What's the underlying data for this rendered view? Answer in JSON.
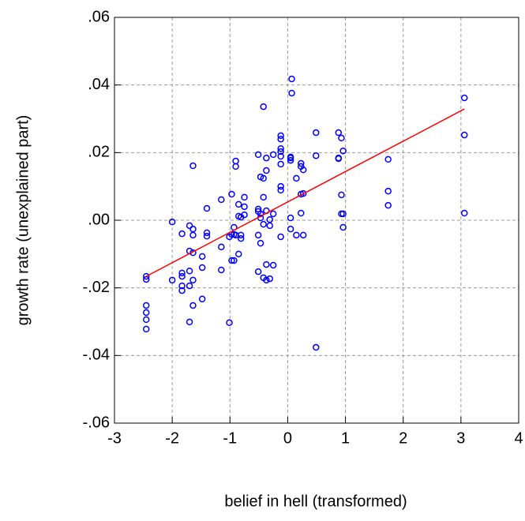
{
  "chart_data": {
    "type": "scatter",
    "xlabel": "belief in hell (transformed)",
    "ylabel": "growth rate (unexplained part)",
    "xlim": [
      -3,
      4
    ],
    "xticks": [
      -3,
      -2,
      -1,
      0,
      1,
      2,
      3,
      4
    ],
    "ylim": [
      -0.06,
      0.06
    ],
    "yticks": [
      {
        "value": -0.06,
        "label": "-.06"
      },
      {
        "value": -0.04,
        "label": "-.04"
      },
      {
        "value": -0.02,
        "label": "-.02"
      },
      {
        "value": 0,
        "label": ".00"
      },
      {
        "value": 0.02,
        "label": ".02"
      },
      {
        "value": 0.04,
        "label": ".04"
      },
      {
        "value": 0.06,
        "label": ".06"
      }
    ],
    "grid": true,
    "series": [
      {
        "color": "#0000ff",
        "x": [
          -2.45,
          -2.45,
          -2.45,
          -2.45,
          -2.45,
          -2.45,
          -2.0,
          -2.0,
          -1.83,
          -1.83,
          -1.83,
          -1.83,
          -1.83,
          -1.7,
          -1.7,
          -1.7,
          -1.7,
          -1.7,
          -1.64,
          -1.64,
          -1.64,
          -1.64,
          -1.64,
          -1.64,
          -1.48,
          -1.48,
          -1.48,
          -1.4,
          -1.4,
          -1.4,
          -1.15,
          -1.15,
          -1.15,
          -1.01,
          -1.01,
          -0.97,
          -0.97,
          -0.97,
          -0.93,
          -0.93,
          -0.93,
          -0.9,
          -0.9,
          -0.9,
          -0.85,
          -0.85,
          -0.85,
          -0.81,
          -0.81,
          -0.81,
          -0.75,
          -0.75,
          -0.75,
          -0.51,
          -0.51,
          -0.51,
          -0.51,
          -0.51,
          -0.47,
          -0.47,
          -0.47,
          -0.47,
          -0.42,
          -0.42,
          -0.42,
          -0.42,
          -0.42,
          -0.37,
          -0.37,
          -0.37,
          -0.37,
          -0.37,
          -0.31,
          -0.31,
          -0.31,
          -0.25,
          -0.25,
          -0.25,
          -0.12,
          -0.12,
          -0.12,
          -0.12,
          -0.12,
          -0.12,
          -0.12,
          -0.12,
          -0.12,
          0.05,
          0.05,
          0.05,
          0.05,
          0.05,
          0.07,
          0.07,
          0.15,
          0.15,
          0.23,
          0.23,
          0.23,
          0.23,
          0.27,
          0.27,
          0.27,
          0.49,
          0.49,
          0.49,
          0.88,
          0.88,
          0.88,
          0.93,
          0.93,
          0.93,
          0.96,
          0.96,
          0.96,
          1.74,
          1.74,
          1.74,
          3.06,
          3.06,
          3.06
        ],
        "values": [
          -0.0166,
          -0.0175,
          -0.0252,
          -0.0273,
          -0.0294,
          -0.0322,
          -0.0005,
          -0.0177,
          -0.004,
          -0.0156,
          -0.0166,
          -0.0194,
          -0.0208,
          -0.0016,
          -0.0091,
          -0.015,
          -0.0194,
          -0.0301,
          0.0161,
          -0.0044,
          -0.0026,
          -0.0096,
          -0.0177,
          -0.0252,
          -0.0107,
          -0.014,
          -0.0233,
          0.0035,
          -0.0037,
          -0.0047,
          0.0061,
          -0.0079,
          -0.0147,
          -0.0049,
          -0.0303,
          0.0077,
          -0.0119,
          -0.0042,
          -0.0021,
          -0.0042,
          -0.0119,
          0.0175,
          0.0159,
          -0.0044,
          0.0047,
          0.0012,
          -0.01,
          -0.0054,
          -0.0044,
          0.0009,
          0.0068,
          0.004,
          0.0016,
          0.0194,
          0.0033,
          0.0026,
          -0.0044,
          -0.0152,
          0.0128,
          0.0019,
          0.0007,
          -0.0068,
          0.0336,
          0.0124,
          0.0068,
          -0.0012,
          -0.017,
          0.0184,
          0.0147,
          0.0028,
          -0.0131,
          -0.0177,
          0.0002,
          -0.0016,
          -0.0173,
          0.0194,
          0.0019,
          -0.0133,
          0.025,
          0.024,
          0.0212,
          0.0203,
          0.0189,
          0.0166,
          0.01,
          0.0089,
          -0.0049,
          0.0187,
          0.0184,
          0.0177,
          0.0007,
          -0.0026,
          0.0418,
          0.0376,
          0.0124,
          -0.0044,
          0.0168,
          0.0159,
          0.0077,
          0.0021,
          0.0149,
          0.0079,
          -0.0044,
          0.0259,
          0.0191,
          -0.0376,
          0.0259,
          0.0184,
          0.0182,
          0.0243,
          0.0075,
          0.0019,
          0.0205,
          0.0019,
          -0.0021,
          0.018,
          0.0086,
          0.0044,
          0.0362,
          0.0252,
          0.0021
        ]
      }
    ],
    "fit_line": {
      "color": "#ff0000",
      "x": [
        -2.45,
        3.06
      ],
      "values": [
        -0.0166,
        0.0329
      ]
    }
  }
}
